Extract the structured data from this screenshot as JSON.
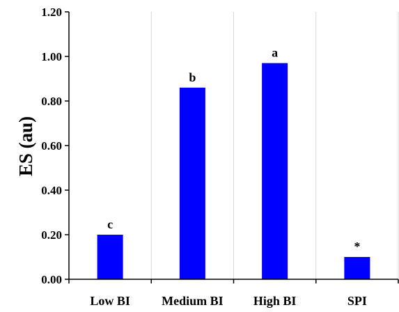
{
  "chart_data": {
    "type": "bar",
    "categories": [
      "Low BI",
      "Medium BI",
      "High BI",
      "SPI"
    ],
    "values": [
      0.2,
      0.86,
      0.97,
      0.1
    ],
    "bar_labels": [
      "c",
      "b",
      "a",
      "*"
    ],
    "ylabel": "ES (au)",
    "xlabel": "",
    "title": "",
    "ylim": [
      0,
      1.2
    ],
    "yticks": [
      "0.00",
      "0.20",
      "0.40",
      "0.60",
      "0.80",
      "1.00",
      "1.20"
    ],
    "grid": "vertical",
    "legend": "none",
    "colors": {
      "bar": "#0000ff",
      "grid": "#d9d9d9",
      "axis": "#000000"
    }
  }
}
